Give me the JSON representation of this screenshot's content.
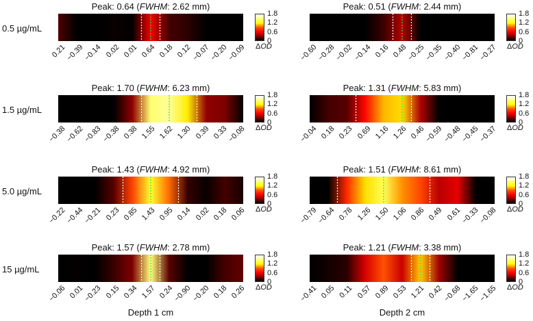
{
  "columns": [
    "Depth 1 cm",
    "Depth 2 cm"
  ],
  "rows": [
    "0.5 µg/mL",
    "1.5 µg/mL",
    "5.0 µg/mL",
    "15 µg/mL"
  ],
  "peak_prefix": "Peak: ",
  "fwhm_label": "FWHM",
  "colorbar": {
    "ticks": [
      "1.8",
      "1.2",
      "0.6",
      "0"
    ],
    "unit_prefix": "Δ",
    "unit_italic": "OD"
  },
  "colormap": "hot",
  "chart_data": [
    {
      "type": "heatmap",
      "column": "Depth 1 cm",
      "row": "0.5 µg/mL",
      "peak": "0.64",
      "fwhm": "2.62 mm",
      "ticks": [
        "0.21",
        "−0.39",
        "−0.14",
        "0.02",
        "0.01",
        "0.64",
        "0.18",
        "0.12",
        "−0.07",
        "−0.20",
        "−0.09"
      ],
      "values": [
        0.21,
        -0.39,
        -0.14,
        0.02,
        0.01,
        0.64,
        0.18,
        0.12,
        -0.07,
        -0.2,
        -0.09
      ],
      "zlim": [
        0,
        1.8
      ]
    },
    {
      "type": "heatmap",
      "column": "Depth 2 cm",
      "row": "0.5 µg/mL",
      "peak": "0.51",
      "fwhm": "2.44 mm",
      "ticks": [
        "−0.60",
        "−0.28",
        "−0.02",
        "−0.14",
        "0.16",
        "0.48",
        "−0.25",
        "−0.35",
        "−0.40",
        "−0.81",
        "−0.27"
      ],
      "values": [
        -0.6,
        -0.28,
        -0.02,
        -0.14,
        0.16,
        0.48,
        -0.25,
        -0.35,
        -0.4,
        -0.81,
        -0.27
      ],
      "zlim": [
        0,
        1.8
      ]
    },
    {
      "type": "heatmap",
      "column": "Depth 1 cm",
      "row": "1.5 µg/mL",
      "peak": "1.70",
      "fwhm": "6.23 mm",
      "ticks": [
        "−0.38",
        "−0.62",
        "−0.83",
        "−0.38",
        "0.38",
        "1.55",
        "1.62",
        "1.30",
        "0.39",
        "0.33",
        "−0.08"
      ],
      "values": [
        -0.38,
        -0.62,
        -0.83,
        -0.38,
        0.38,
        1.55,
        1.62,
        1.3,
        0.39,
        0.33,
        -0.08
      ],
      "zlim": [
        0,
        1.8
      ]
    },
    {
      "type": "heatmap",
      "column": "Depth 2 cm",
      "row": "1.5 µg/mL",
      "peak": "1.31",
      "fwhm": "5.83 mm",
      "ticks": [
        "−0.04",
        "0.18",
        "0.23",
        "0.69",
        "1.16",
        "1.26",
        "0.46",
        "−0.59",
        "−0.48",
        "−0.45",
        "−0.37"
      ],
      "values": [
        -0.04,
        0.18,
        0.23,
        0.69,
        1.16,
        1.26,
        0.46,
        -0.59,
        -0.48,
        -0.45,
        -0.37
      ],
      "zlim": [
        0,
        1.8
      ]
    },
    {
      "type": "heatmap",
      "column": "Depth 1 cm",
      "row": "5.0 µg/mL",
      "peak": "1.43",
      "fwhm": "4.92 mm",
      "ticks": [
        "−0.22",
        "−0.44",
        "−0.21",
        "0.23",
        "0.85",
        "1.43",
        "0.95",
        "0.14",
        "0.02",
        "0.18",
        "0.06"
      ],
      "values": [
        -0.22,
        -0.44,
        -0.21,
        0.23,
        0.85,
        1.43,
        0.95,
        0.14,
        0.02,
        0.18,
        0.06
      ],
      "zlim": [
        0,
        1.8
      ]
    },
    {
      "type": "heatmap",
      "column": "Depth 2 cm",
      "row": "5.0 µg/mL",
      "peak": "1.51",
      "fwhm": "8.61 mm",
      "ticks": [
        "−0.79",
        "−0.64",
        "0.78",
        "1.26",
        "1.50",
        "1.06",
        "0.86",
        "0.49",
        "0.61",
        "−0.33",
        "−0.08"
      ],
      "values": [
        -0.79,
        -0.64,
        0.78,
        1.26,
        1.5,
        1.06,
        0.86,
        0.49,
        0.61,
        -0.33,
        -0.08
      ],
      "zlim": [
        0,
        1.8
      ]
    },
    {
      "type": "heatmap",
      "column": "Depth 1 cm",
      "row": "15 µg/mL",
      "peak": "1.57",
      "fwhm": "2.78 mm",
      "ticks": [
        "−0.06",
        "0.01",
        "−0.23",
        "0.15",
        "0.34",
        "1.57",
        "0.24",
        "−0.90",
        "−0.20",
        "0.18",
        "0.26"
      ],
      "values": [
        -0.06,
        0.01,
        -0.23,
        0.15,
        0.34,
        1.57,
        0.24,
        -0.9,
        -0.2,
        0.18,
        0.26
      ],
      "zlim": [
        0,
        1.8
      ]
    },
    {
      "type": "heatmap",
      "column": "Depth 2 cm",
      "row": "15 µg/mL",
      "peak": "1.21",
      "fwhm": "3.38 mm",
      "ticks": [
        "−0.41",
        "0.05",
        "0.11",
        "0.57",
        "0.89",
        "0.53",
        "1.21",
        "0.42",
        "−0.68",
        "−1.65",
        "−1.65"
      ],
      "values": [
        -0.41,
        0.05,
        0.11,
        0.57,
        0.89,
        0.53,
        1.21,
        0.42,
        -0.68,
        -1.65,
        -1.65
      ],
      "zlim": [
        0,
        1.8
      ]
    }
  ]
}
